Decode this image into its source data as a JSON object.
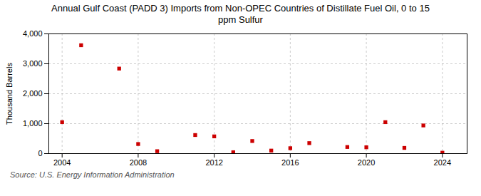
{
  "chart_data": {
    "type": "scatter",
    "title": "Annual Gulf Coast (PADD 3) Imports from Non-OPEC Countries of Distillate Fuel Oil, 0 to 15\nppm Sulfur",
    "ylabel": "Thousand Barrels",
    "source": "Source: U.S. Energy Information Administration",
    "x": [
      2004,
      2005,
      2007,
      2008,
      2009,
      2011,
      2012,
      2013,
      2014,
      2015,
      2016,
      2017,
      2019,
      2020,
      2021,
      2022,
      2023,
      2024
    ],
    "values": [
      1050,
      3620,
      2840,
      320,
      80,
      620,
      575,
      45,
      420,
      100,
      180,
      350,
      220,
      210,
      1050,
      190,
      940,
      30
    ],
    "color": "#cc0000",
    "marker": "square",
    "xlim": [
      2003.3,
      2025.3
    ],
    "xticks": [
      2004,
      2008,
      2012,
      2016,
      2020,
      2024
    ],
    "ylim": [
      0,
      4000
    ],
    "yticks": [
      0,
      {
        "value": 1000,
        "label": "1,000"
      },
      {
        "value": 2000,
        "label": "2,000"
      },
      {
        "value": 3000,
        "label": "3,000"
      },
      {
        "value": 4000,
        "label": "4,000"
      }
    ],
    "grid": true
  }
}
